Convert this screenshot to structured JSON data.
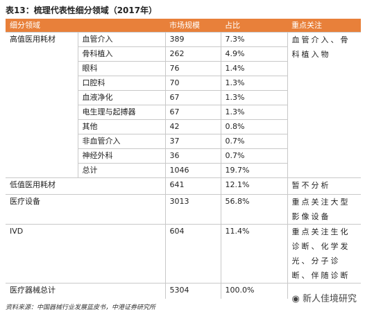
{
  "title": "表13：梳理代表性细分领域（2017年）",
  "table": {
    "header": [
      "细分领域",
      "市场规模",
      "占比",
      "重点关注"
    ],
    "groups": [
      {
        "name": "高值医用耗材",
        "items": [
          {
            "name": "血管介入",
            "size": "389",
            "share": "7.3%"
          },
          {
            "name": "骨科植入",
            "size": "262",
            "share": "4.9%"
          },
          {
            "name": "眼科",
            "size": "76",
            "share": "1.4%"
          },
          {
            "name": "口腔科",
            "size": "70",
            "share": "1.3%"
          },
          {
            "name": "血液净化",
            "size": "67",
            "share": "1.3%"
          },
          {
            "name": "电生理与起搏器",
            "size": "67",
            "share": "1.3%"
          },
          {
            "name": "其他",
            "size": "42",
            "share": "0.8%"
          },
          {
            "name": "非血管介入",
            "size": "37",
            "share": "0.7%"
          },
          {
            "name": "神经外科",
            "size": "36",
            "share": "0.7%"
          },
          {
            "name": "总计",
            "size": "1046",
            "share": "19.7%"
          }
        ],
        "focus": "血管介入、骨科植入物"
      },
      {
        "name": "低值医用耗材",
        "size": "641",
        "share": "12.1%",
        "focus": "暂不分析"
      },
      {
        "name": "医疗设备",
        "size": "3013",
        "share": "56.8%",
        "focus": "重点关注大型影像设备"
      },
      {
        "name": "IVD",
        "size": "604",
        "share": "11.4%",
        "focus": "重点关注生化诊断、化学发光、分子诊断、伴随诊断"
      },
      {
        "name": "医疗器械总计",
        "size": "5304",
        "share": "100.0%"
      }
    ]
  },
  "source": "资料来源：中国器械行业发展蓝皮书，中港证券研究所",
  "watermark": "新人佳境研究"
}
